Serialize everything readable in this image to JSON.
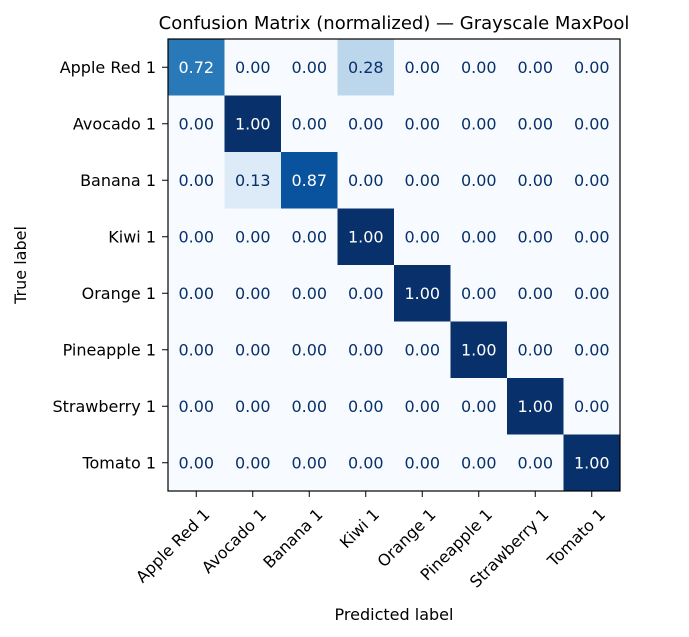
{
  "chart_data": {
    "type": "heatmap",
    "title": "Confusion Matrix (normalized) — Grayscale MaxPool",
    "xlabel": "Predicted label",
    "ylabel": "True label",
    "x_categories": [
      "Apple Red 1",
      "Avocado 1",
      "Banana 1",
      "Kiwi 1",
      "Orange 1",
      "Pineapple 1",
      "Strawberry 1",
      "Tomato 1"
    ],
    "y_categories": [
      "Apple Red 1",
      "Avocado 1",
      "Banana 1",
      "Kiwi 1",
      "Orange 1",
      "Pineapple 1",
      "Strawberry 1",
      "Tomato 1"
    ],
    "values": [
      [
        0.72,
        0.0,
        0.0,
        0.28,
        0.0,
        0.0,
        0.0,
        0.0
      ],
      [
        0.0,
        1.0,
        0.0,
        0.0,
        0.0,
        0.0,
        0.0,
        0.0
      ],
      [
        0.0,
        0.13,
        0.87,
        0.0,
        0.0,
        0.0,
        0.0,
        0.0
      ],
      [
        0.0,
        0.0,
        0.0,
        1.0,
        0.0,
        0.0,
        0.0,
        0.0
      ],
      [
        0.0,
        0.0,
        0.0,
        0.0,
        1.0,
        0.0,
        0.0,
        0.0
      ],
      [
        0.0,
        0.0,
        0.0,
        0.0,
        0.0,
        1.0,
        0.0,
        0.0
      ],
      [
        0.0,
        0.0,
        0.0,
        0.0,
        0.0,
        0.0,
        1.0,
        0.0
      ],
      [
        0.0,
        0.0,
        0.0,
        0.0,
        0.0,
        0.0,
        0.0,
        1.0
      ]
    ],
    "value_format": "2 decimals",
    "colormap": "Blues",
    "vmin": 0,
    "vmax": 1,
    "colorbar": false
  }
}
